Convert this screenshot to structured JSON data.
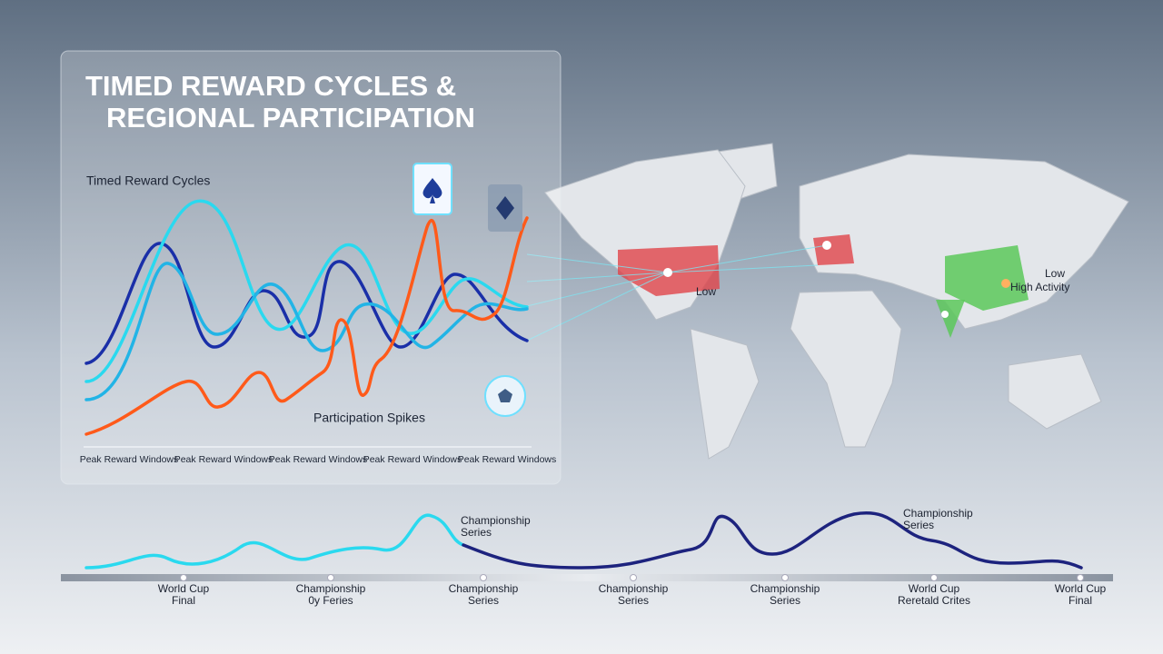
{
  "header": {
    "title_lines": [
      "TIMED REWARD CYCLES &",
      "REGIONAL PARTICIPATION"
    ]
  },
  "panel": {
    "subtitle": "Timed Reward Cycles",
    "annotation": "Participation Spikes",
    "x_labels": [
      "Peak Reward Windows",
      "Peak Reward Windows",
      "Peak Reward Windows",
      "Peak Reward Windows",
      "Peak Reward Windows"
    ]
  },
  "map": {
    "labels": [
      "Low",
      "Low",
      "High Activity"
    ]
  },
  "timeline": {
    "callouts": [
      [
        "Championship",
        "Series"
      ],
      [
        "Championship",
        "Series"
      ]
    ],
    "milestones": [
      [
        "World Cup",
        "Final"
      ],
      [
        "Championship",
        "0y Feries"
      ],
      [
        "Championship",
        "Series"
      ],
      [
        "Championship",
        "Series"
      ],
      [
        "Championship",
        "Series"
      ],
      [
        "World Cup",
        "Reretald Crites"
      ],
      [
        "World Cup",
        "Final"
      ]
    ]
  }
}
